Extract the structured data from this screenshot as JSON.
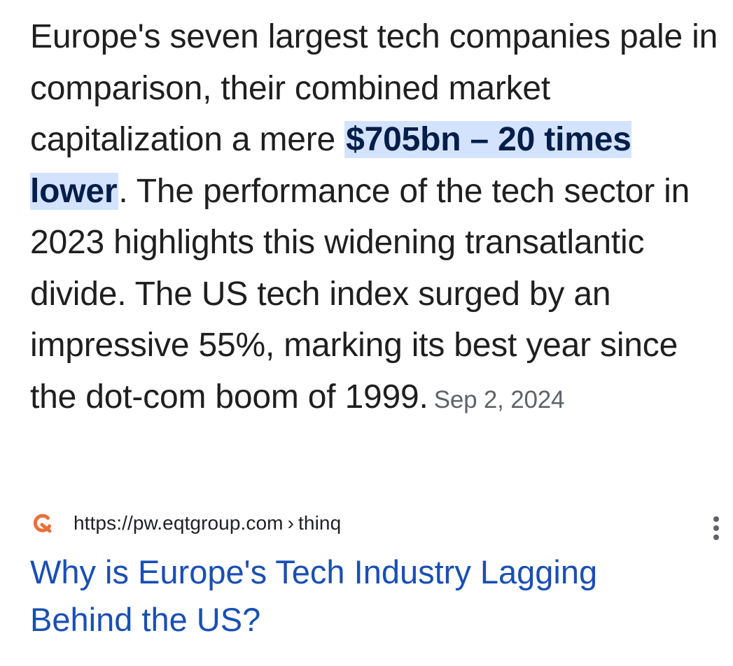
{
  "snippet": {
    "text_before": "Europe's seven largest tech companies pale in comparison, their combined market capitalization a mere ",
    "highlight": "$705bn – 20 times lower",
    "text_after": ". The performance of the tech sector in 2023 highlights this widening transatlantic divide. The US tech index surged by an impressive 55%, marking its best year since the dot-com boom of 1999.",
    "date": "Sep 2, 2024"
  },
  "source": {
    "favicon": "eqt-logo-icon",
    "url": "https://pw.eqtgroup.com",
    "separator": "›",
    "path": "thinq",
    "more_icon": "three-dots-vertical-icon"
  },
  "result": {
    "title": "Why is Europe's Tech Industry Lagging Behind the US?"
  },
  "colors": {
    "highlight_bg": "#d3e3fd",
    "link": "#1a4fb3",
    "favicon": "#e8703a"
  }
}
